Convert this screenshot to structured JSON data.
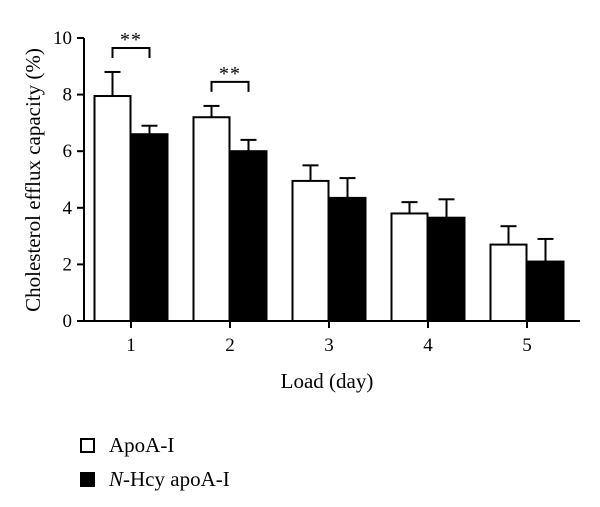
{
  "chart_data": {
    "type": "bar",
    "title": "",
    "xlabel": "Load (day)",
    "ylabel": "Cholesterol efflux capacity (%)",
    "categories": [
      "1",
      "2",
      "3",
      "4",
      "5"
    ],
    "ylim": [
      0,
      10
    ],
    "yticks": [
      "0",
      "2",
      "4",
      "6",
      "8",
      "10"
    ],
    "series": [
      {
        "name": "ApoA-I",
        "fill": "#ffffff",
        "values": [
          7.95,
          7.2,
          4.95,
          3.8,
          2.7
        ],
        "errors": [
          0.85,
          0.4,
          0.55,
          0.4,
          0.65
        ]
      },
      {
        "name": "N-Hcy apoA-I",
        "fill": "#000000",
        "values": [
          6.6,
          6.0,
          4.35,
          3.65,
          2.1
        ],
        "errors": [
          0.3,
          0.4,
          0.7,
          0.65,
          0.8
        ]
      }
    ],
    "significance": [
      {
        "category": "1",
        "label": "**"
      },
      {
        "category": "2",
        "label": "**"
      }
    ],
    "legend": {
      "position": "bottom-left",
      "items": [
        {
          "text": "ApoA-I",
          "italic_prefix": "",
          "rest": "ApoA-I"
        },
        {
          "text": "N-Hcy apoA-I",
          "italic_prefix": "N",
          "rest": "-Hcy apoA-I"
        }
      ]
    }
  }
}
